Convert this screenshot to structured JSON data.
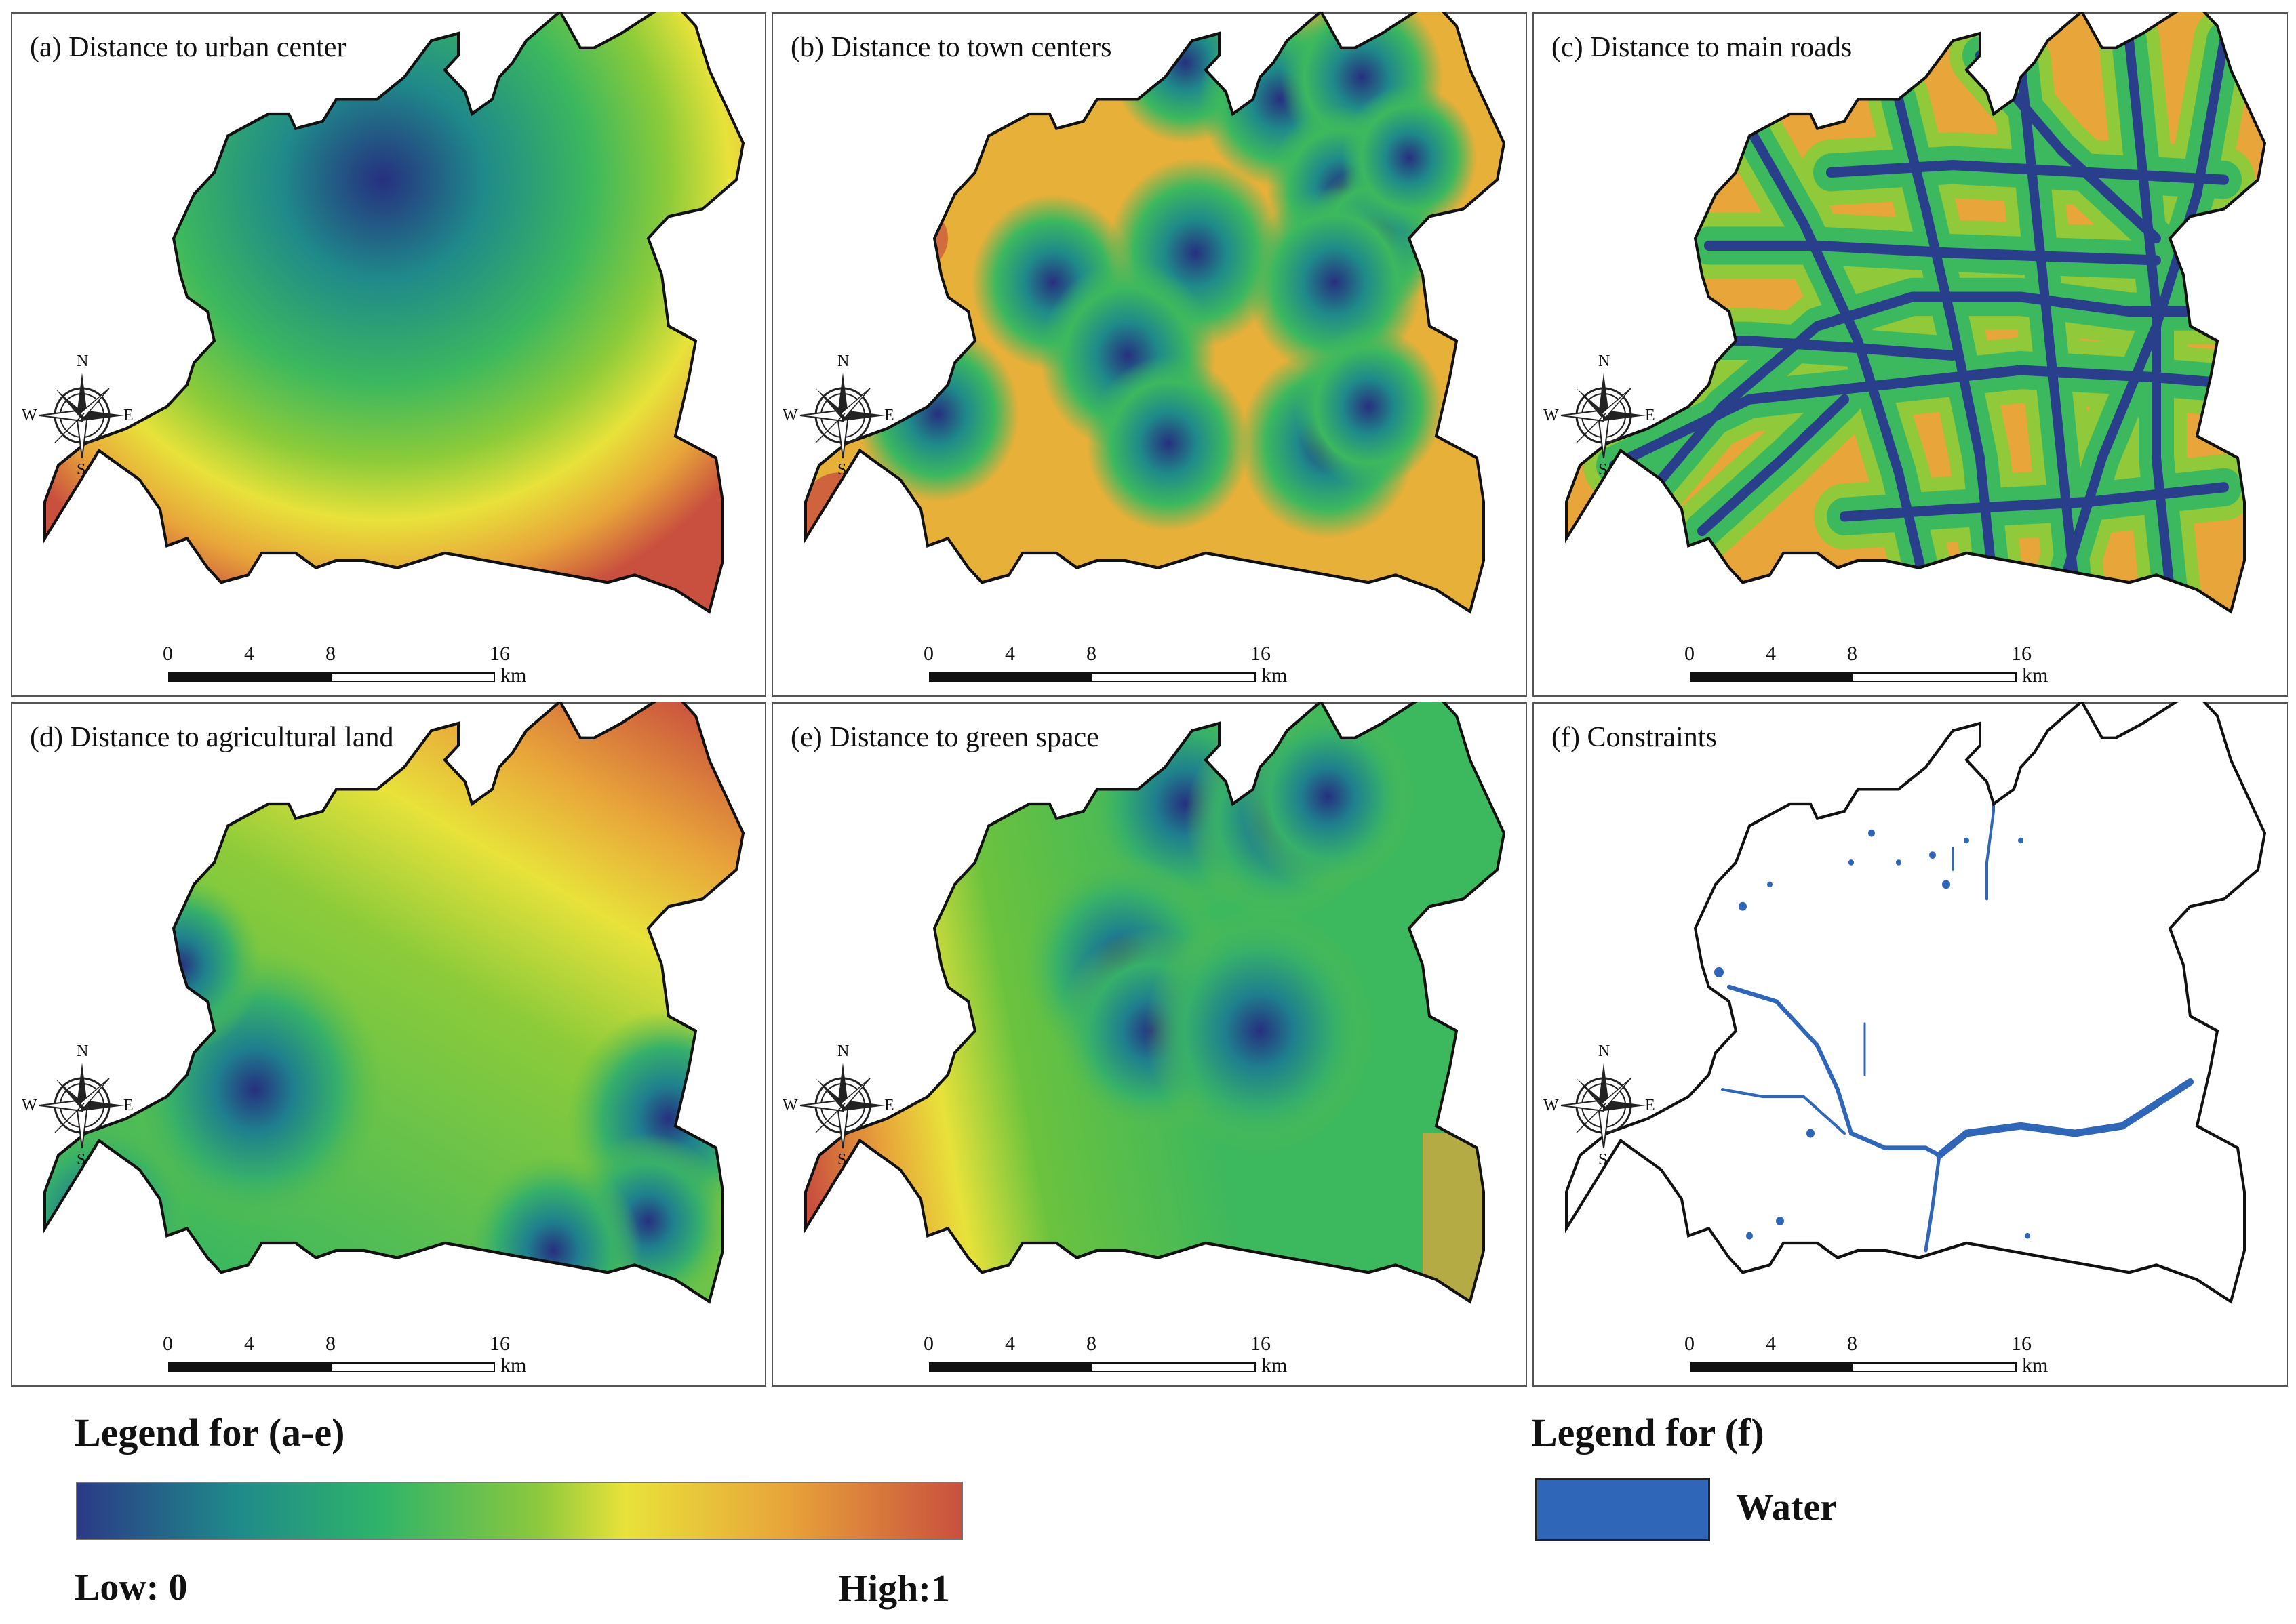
{
  "panels": [
    {
      "id": "a",
      "title": "(a) Distance to urban center"
    },
    {
      "id": "b",
      "title": "(b) Distance to town centers"
    },
    {
      "id": "c",
      "title": "(c) Distance to main roads"
    },
    {
      "id": "d",
      "title": "(d) Distance to agricultural land"
    },
    {
      "id": "e",
      "title": "(e) Distance to green space"
    },
    {
      "id": "f",
      "title": "(f) Constraints"
    }
  ],
  "compass": {
    "n": "N",
    "s": "S",
    "e": "E",
    "w": "W"
  },
  "scalebar": {
    "ticks": [
      "0",
      "4",
      "8",
      "16"
    ],
    "unit": "km"
  },
  "legend_ae": {
    "title": "Legend for (a-e)",
    "low": "Low: 0",
    "high": "High:1"
  },
  "legend_f": {
    "title": "Legend for (f)",
    "item": "Water"
  },
  "colors": {
    "gradient": [
      "#2b3a86",
      "#1f8a8a",
      "#2eb36a",
      "#6bc23e",
      "#e8e23a",
      "#e8a53a",
      "#c9503e"
    ],
    "water": "#2f66b7",
    "boundary": "#111111"
  }
}
